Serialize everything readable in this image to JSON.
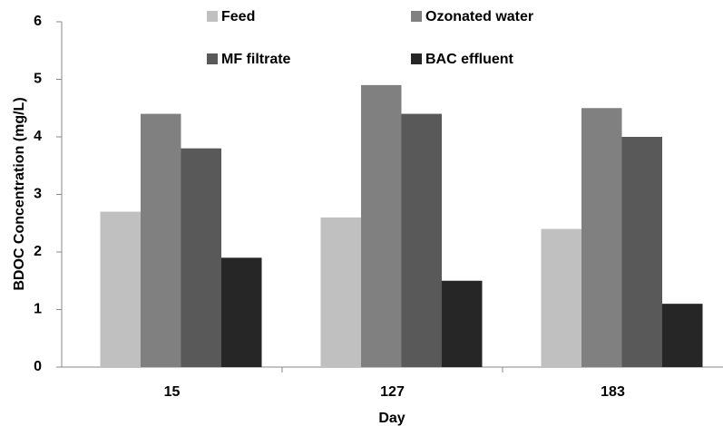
{
  "chart_data": {
    "type": "bar",
    "x_label": "Day",
    "y_label": "BDOC Concentration (mg/L)",
    "categories": [
      "15",
      "127",
      "183"
    ],
    "series": [
      {
        "name": "Feed",
        "color": "#c0c0c0",
        "values": [
          2.7,
          2.6,
          2.4
        ]
      },
      {
        "name": "Ozonated water",
        "color": "#808080",
        "values": [
          4.4,
          4.9,
          4.5
        ]
      },
      {
        "name": "MF filtrate",
        "color": "#595959",
        "values": [
          3.8,
          4.4,
          4.0
        ]
      },
      {
        "name": "BAC effluent",
        "color": "#262626",
        "values": [
          1.9,
          1.5,
          1.1
        ]
      }
    ],
    "ylim": [
      0,
      6
    ],
    "yticks": [
      0,
      1,
      2,
      3,
      4,
      5,
      6
    ],
    "grid": false,
    "legend": "top"
  }
}
